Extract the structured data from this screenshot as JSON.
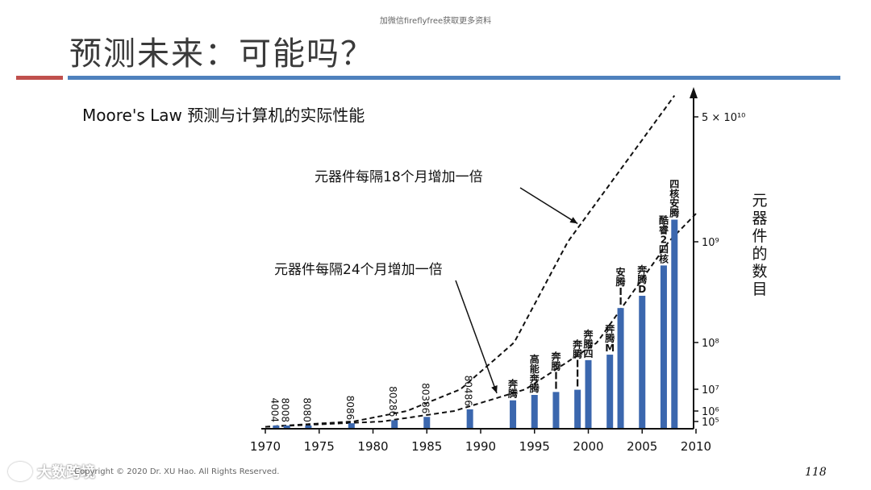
{
  "watermark_top": "加微信fireflyfree获取更多资料",
  "title": "预测未来：可能吗？",
  "subtitle": "Moore's Law 预测与计算机的实际性能",
  "footer": {
    "copyright": "Copyright © 2020 Dr. XU Hao. All Rights Reserved.",
    "brand": "大数跨境",
    "page_number": "118"
  },
  "colors": {
    "bar": "#3b67ae",
    "rule_red": "#c0504d",
    "rule_blue": "#4f81bd"
  },
  "chart_data": {
    "type": "bar",
    "title": "Moore's Law 预测与计算机的实际性能",
    "xlabel": "",
    "ylabel": "元器件的数目",
    "y_scale": "log",
    "xlim": [
      1970,
      2010
    ],
    "x_ticks": [
      1970,
      1975,
      1980,
      1985,
      1990,
      1995,
      2000,
      2005,
      2010
    ],
    "y_ticks": [
      {
        "value": 100000,
        "label": "10⁵"
      },
      {
        "value": 1000000,
        "label": "10⁶"
      },
      {
        "value": 10000000,
        "label": "10⁷"
      },
      {
        "value": 100000000,
        "label": "10⁸"
      },
      {
        "value": 1000000000,
        "label": "10⁹"
      },
      {
        "value": 50000000000,
        "label": "5 × 10¹⁰"
      }
    ],
    "bars": [
      {
        "year": 1971,
        "value": 2300,
        "label": "4004"
      },
      {
        "year": 1972,
        "value": 3500,
        "label": "8008"
      },
      {
        "year": 1974,
        "value": 6000,
        "label": "8080"
      },
      {
        "year": 1978,
        "value": 29000,
        "label": "8086"
      },
      {
        "year": 1982,
        "value": 134000,
        "label": "80286"
      },
      {
        "year": 1985,
        "value": 275000,
        "label": "80386"
      },
      {
        "year": 1989,
        "value": 1200000,
        "label": "80486"
      },
      {
        "year": 1993,
        "value": 3100000,
        "label": "奔腾"
      },
      {
        "year": 1995,
        "value": 5500000,
        "label": "高能奔腾"
      },
      {
        "year": 1997,
        "value": 7500000,
        "label": "奔腾II"
      },
      {
        "year": 1999,
        "value": 9500000,
        "label": "奔腾III"
      },
      {
        "year": 2000,
        "value": 42000000,
        "label": "奔腾四"
      },
      {
        "year": 2002,
        "value": 55000000,
        "label": "奔腾M"
      },
      {
        "year": 2003,
        "value": 220000000,
        "label": "安腾II"
      },
      {
        "year": 2005,
        "value": 291000000,
        "label": "奔腾D"
      },
      {
        "year": 2007,
        "value": 582000000,
        "label": "酷睿2四核"
      },
      {
        "year": 2008,
        "value": 2000000000,
        "label": "四核安腾"
      }
    ],
    "series": [
      {
        "name": "元器件每隔18个月增加一倍",
        "style": "dashed",
        "start_year": 1970,
        "start_value": 2300,
        "doubling_years": 1.5
      },
      {
        "name": "元器件每隔24个月增加一倍",
        "style": "dashed",
        "start_year": 1970,
        "start_value": 2300,
        "doubling_years": 2
      }
    ],
    "annotations": [
      {
        "text": "元器件每隔18个月增加一倍",
        "points_to_series": 0
      },
      {
        "text": "元器件每隔24个月增加一倍",
        "points_to_series": 1
      }
    ]
  }
}
